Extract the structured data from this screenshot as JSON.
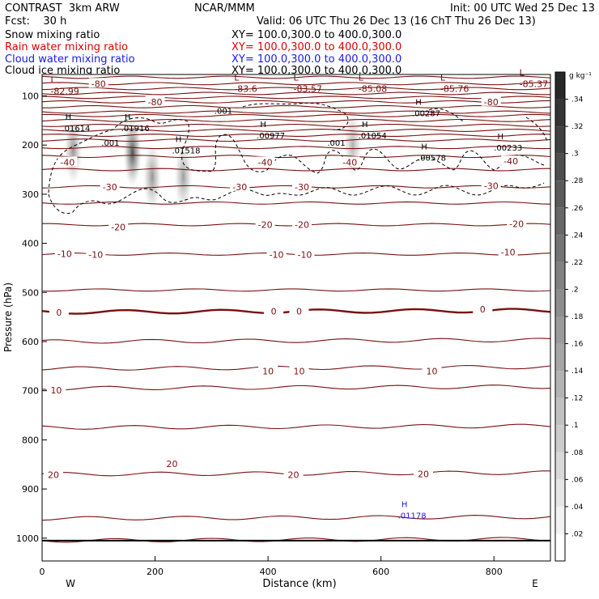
{
  "header": {
    "model": "CONTRAST  3km ARW",
    "org": "NCAR/MMM",
    "init": "Init: 00 UTC Wed 25 Dec 13",
    "fcst": "Fcst:    30 h",
    "valid": "Valid: 06 UTC Thu 26 Dec 13 (16 ChT Thu 26 Dec 13)",
    "fields": [
      {
        "name": "Snow mixing ratio",
        "xy": "XY= 100.0,300.0 to 400.0,300.0",
        "color": "#000000"
      },
      {
        "name": "Rain water mixing ratio",
        "xy": "XY= 100.0,300.0 to 400.0,300.0",
        "color": "#e00000"
      },
      {
        "name": "Cloud water mixing ratio",
        "xy": "XY= 100.0,300.0 to 400.0,300.0",
        "color": "#1a1ae0"
      },
      {
        "name": "Cloud ice mixing ratio",
        "xy": "XY= 100.0,300.0 to 400.0,300.0",
        "color": "#000000"
      }
    ]
  },
  "chart_data": {
    "type": "cross-section",
    "xlabel": "Distance (km)",
    "ylabel": "Pressure (hPa)",
    "xlim": [
      0,
      900
    ],
    "ylim": [
      1050,
      50
    ],
    "xticks": [
      0,
      200,
      400,
      600,
      800
    ],
    "yticks": [
      100,
      200,
      300,
      400,
      500,
      600,
      700,
      800,
      900,
      1000
    ],
    "left_end_label": "W",
    "right_end_label": "E",
    "colorbar": {
      "unit": "g kg⁻¹",
      "ticks": [
        ".34",
        ".32",
        ".3",
        ".28",
        ".26",
        ".24",
        ".22",
        ".2",
        ".18",
        ".16",
        ".14",
        ".12",
        ".1",
        ".08",
        ".06",
        ".04",
        ".02"
      ]
    },
    "temperature_labels": [
      {
        "x": 100,
        "p": 75,
        "text": "-80"
      },
      {
        "x": 200,
        "p": 112,
        "text": "-80"
      },
      {
        "x": 795,
        "p": 112,
        "text": "-80"
      },
      {
        "x": 45,
        "p": 235,
        "text": "-40"
      },
      {
        "x": 395,
        "p": 235,
        "text": "-40"
      },
      {
        "x": 545,
        "p": 235,
        "text": "-40"
      },
      {
        "x": 830,
        "p": 233,
        "text": "-40"
      },
      {
        "x": 120,
        "p": 285,
        "text": "-30"
      },
      {
        "x": 350,
        "p": 285,
        "text": "-30"
      },
      {
        "x": 460,
        "p": 285,
        "text": "-30"
      },
      {
        "x": 795,
        "p": 283,
        "text": "-30"
      },
      {
        "x": 135,
        "p": 367,
        "text": "-20"
      },
      {
        "x": 395,
        "p": 362,
        "text": "-20"
      },
      {
        "x": 460,
        "p": 362,
        "text": "-20"
      },
      {
        "x": 840,
        "p": 360,
        "text": "-20"
      },
      {
        "x": 40,
        "p": 421,
        "text": "-10"
      },
      {
        "x": 95,
        "p": 423,
        "text": "-10"
      },
      {
        "x": 415,
        "p": 423,
        "text": "-10"
      },
      {
        "x": 465,
        "p": 423,
        "text": "-10"
      },
      {
        "x": 825,
        "p": 418,
        "text": "-10"
      },
      {
        "x": 30,
        "p": 541,
        "text": "0"
      },
      {
        "x": 410,
        "p": 538,
        "text": "0"
      },
      {
        "x": 455,
        "p": 538,
        "text": "0"
      },
      {
        "x": 780,
        "p": 534,
        "text": "0"
      },
      {
        "x": 400,
        "p": 660,
        "text": "10"
      },
      {
        "x": 455,
        "p": 660,
        "text": "10"
      },
      {
        "x": 690,
        "p": 660,
        "text": "10"
      },
      {
        "x": 25,
        "p": 699,
        "text": "10"
      },
      {
        "x": 230,
        "p": 849,
        "text": "20"
      },
      {
        "x": 20,
        "p": 871,
        "text": "20"
      },
      {
        "x": 445,
        "p": 871,
        "text": "20"
      },
      {
        "x": 675,
        "p": 869,
        "text": "20"
      }
    ],
    "low_centers": [
      {
        "x": 15,
        "p": 90,
        "value": "-82.99"
      },
      {
        "x": 340,
        "p": 85,
        "value": "-83.6"
      },
      {
        "x": 445,
        "p": 85,
        "value": "-83.57"
      },
      {
        "x": 560,
        "p": 85,
        "value": "-85.08"
      },
      {
        "x": 705,
        "p": 85,
        "value": "-85.76"
      },
      {
        "x": 845,
        "p": 75,
        "value": "-85.37"
      }
    ],
    "high_centers": [
      {
        "x": 35,
        "p": 165,
        "value": ".01614",
        "color": "#000000"
      },
      {
        "x": 140,
        "p": 165,
        "value": ".01916",
        "color": "#000000"
      },
      {
        "x": 230,
        "p": 210,
        "value": ".01518",
        "color": "#000000"
      },
      {
        "x": 380,
        "p": 180,
        "value": ".00977",
        "color": "#000000"
      },
      {
        "x": 560,
        "p": 180,
        "value": ".01054",
        "color": "#000000"
      },
      {
        "x": 655,
        "p": 135,
        "value": ".00287",
        "color": "#000000"
      },
      {
        "x": 665,
        "p": 225,
        "value": ".00578",
        "color": "#000000"
      },
      {
        "x": 800,
        "p": 205,
        "value": ".00233",
        "color": "#000000"
      },
      {
        "x": 630,
        "p": 953,
        "value": ".01178",
        "color": "#1a1ae0"
      }
    ],
    "ice_value_labels": [
      {
        "x": 305,
        "p": 130,
        "value": ".001"
      },
      {
        "x": 105,
        "p": 195,
        "value": ".001"
      },
      {
        "x": 505,
        "p": 195,
        "value": ".001"
      }
    ],
    "isotherm_levels": [
      1005,
      960,
      870,
      775,
      695,
      655,
      600,
      540,
      495,
      422,
      362,
      318,
      285,
      250,
      223,
      205,
      190,
      180,
      170,
      160,
      150,
      140,
      133,
      122,
      112,
      103,
      95,
      85,
      75,
      62
    ],
    "snow_plumes": [
      {
        "x": 55,
        "p": 210,
        "intensity": 0.55
      },
      {
        "x": 160,
        "p": 215,
        "intensity": 0.9
      },
      {
        "x": 195,
        "p": 265,
        "intensity": 0.55
      },
      {
        "x": 250,
        "p": 265,
        "intensity": 0.5
      },
      {
        "x": 550,
        "p": 200,
        "intensity": 0.4
      }
    ]
  }
}
